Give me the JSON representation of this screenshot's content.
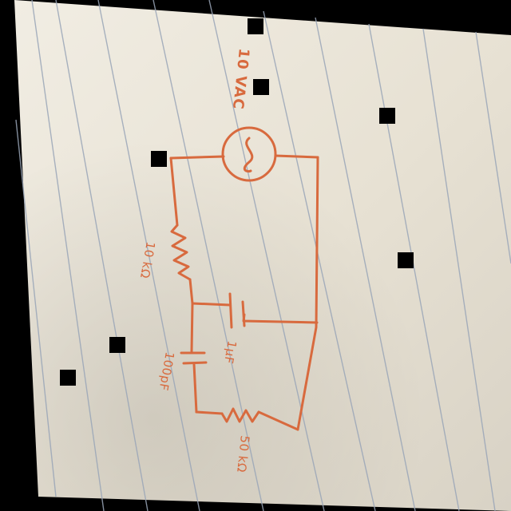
{
  "photo": {
    "description_text": "",
    "ink_color": "#d86a3e",
    "paper_color": "#e9e4d7",
    "line_color": "#9aa6b8"
  },
  "circuit": {
    "source_label": "10 VAC",
    "r1_label": "10 kΩ",
    "c1_label": "1µF",
    "c2_label": "100pF",
    "r2_label": "50 kΩ"
  },
  "markers": [
    {
      "name": "marker-1"
    },
    {
      "name": "marker-2"
    },
    {
      "name": "marker-3"
    },
    {
      "name": "marker-4"
    },
    {
      "name": "marker-5"
    },
    {
      "name": "marker-6"
    },
    {
      "name": "marker-7"
    }
  ]
}
